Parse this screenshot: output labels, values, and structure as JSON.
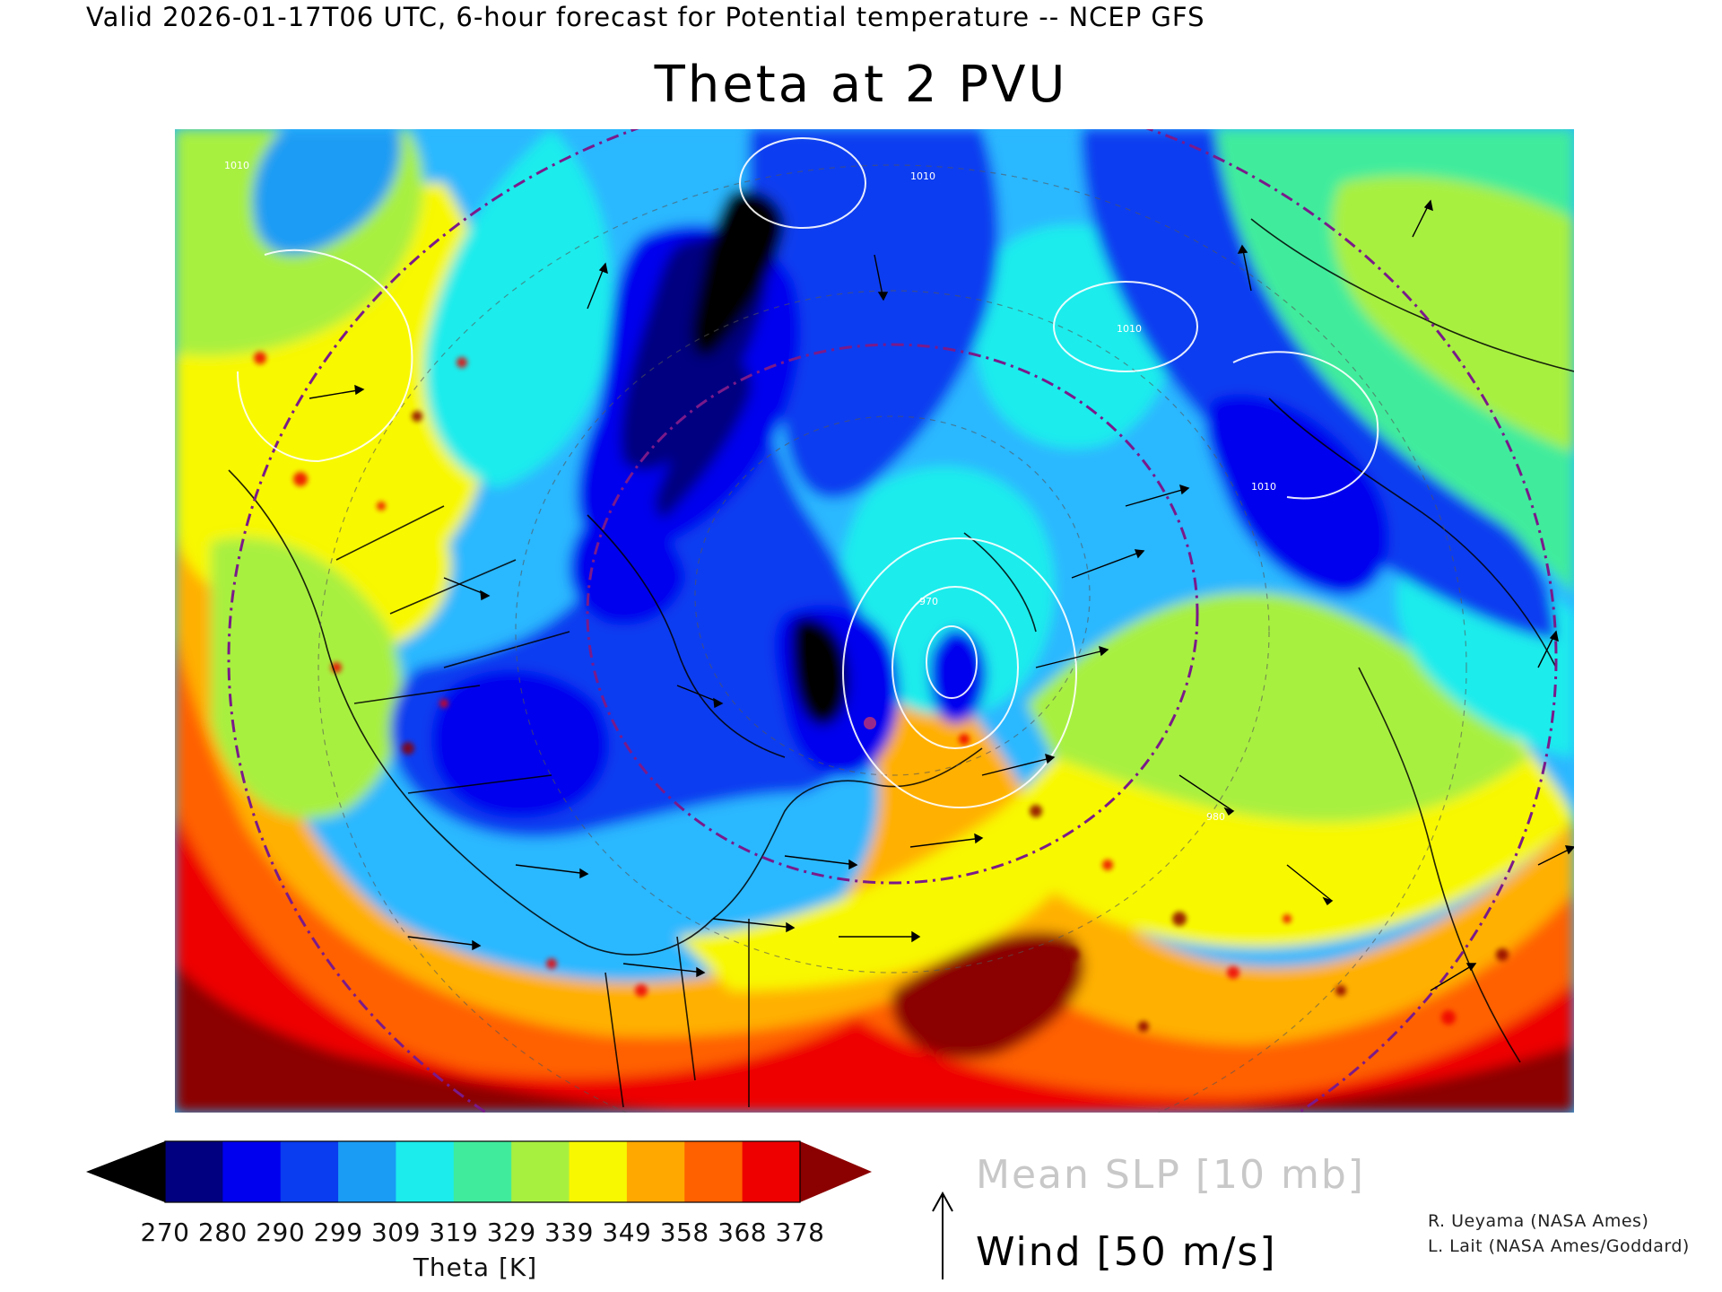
{
  "header": {
    "valid_line": "Valid 2026-01-17T06 UTC, 6-hour forecast for Potential temperature -- NCEP GFS"
  },
  "title": "Theta at 2 PVU",
  "colorbar": {
    "title": "Theta [K]",
    "tick_labels": [
      "270",
      "280",
      "290",
      "299",
      "309",
      "319",
      "329",
      "339",
      "349",
      "358",
      "368",
      "378"
    ],
    "colors": [
      "#000000",
      "#000080",
      "#0000ee",
      "#0a3cf0",
      "#1a9cf4",
      "#1cecec",
      "#40ec9c",
      "#a8f040",
      "#f8f800",
      "#ffa800",
      "#ff6000",
      "#ee0000",
      "#8b0000"
    ]
  },
  "legend": {
    "slp": "Mean SLP [10 mb]",
    "wind": "Wind [50 m/s]"
  },
  "contour_labels": [
    "1010",
    "1010",
    "1010",
    "1010",
    "970",
    "980"
  ],
  "credits": [
    "R. Ueyama (NASA Ames)",
    "L. Lait (NASA Ames/Goddard)"
  ],
  "icons": {
    "wind_reference": "up-arrow-icon"
  }
}
